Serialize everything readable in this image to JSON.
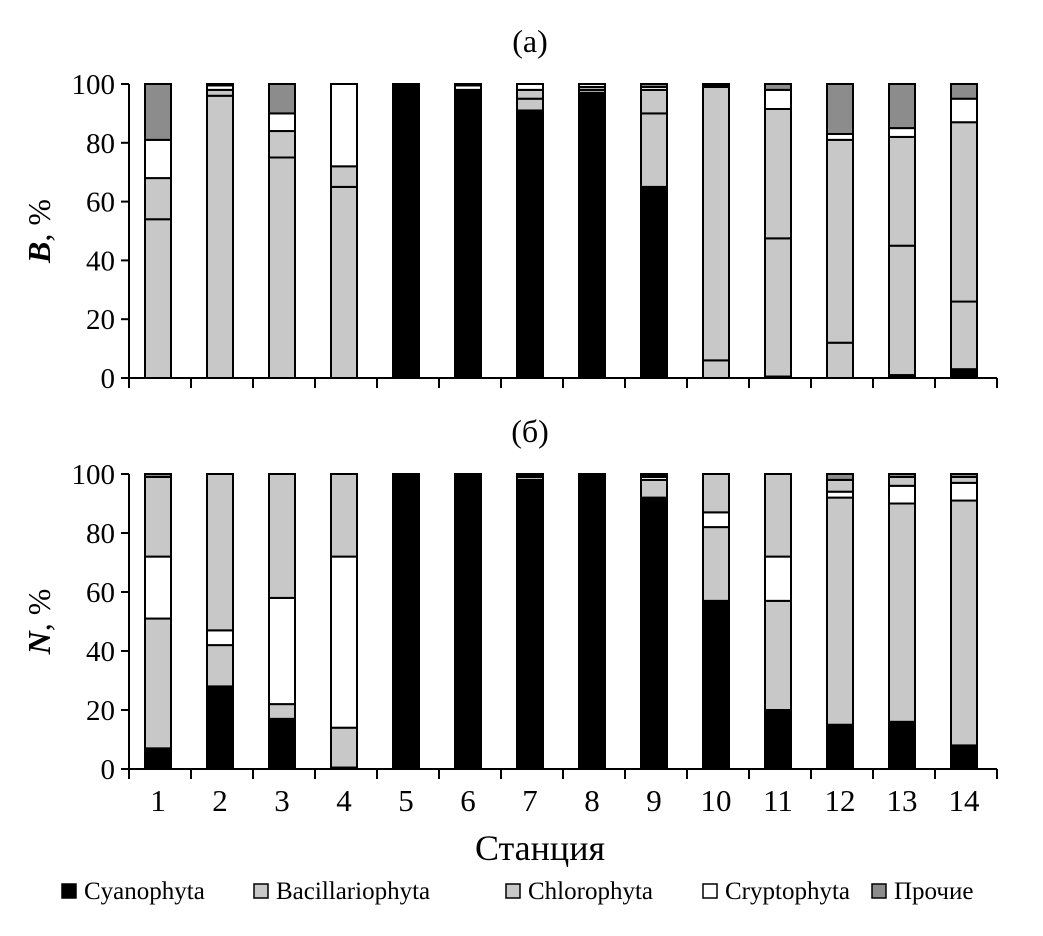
{
  "chart_data": [
    {
      "type": "bar",
      "stacked": true,
      "title": "(а)",
      "ylabel_var": "B",
      "ylabel_unit": ", %",
      "ylim": [
        0,
        100
      ],
      "yticks": [
        "0",
        "20",
        "40",
        "60",
        "80",
        "100"
      ],
      "categories": [
        "1",
        "2",
        "3",
        "4",
        "5",
        "6",
        "7",
        "8",
        "9",
        "10",
        "11",
        "12",
        "13",
        "14"
      ],
      "stack_order": [
        "Cyanophyta",
        "Bacillariophyta",
        "Chlorophyta",
        "Cryptophyta",
        "Прочие"
      ],
      "series": [
        {
          "name": "Cyanophyta",
          "values": [
            0,
            0,
            0,
            0,
            99,
            98,
            91,
            97,
            65,
            0,
            0.5,
            0,
            1,
            3
          ]
        },
        {
          "name": "Bacillariophyta",
          "values": [
            54,
            96,
            75,
            65,
            0,
            0,
            4,
            1,
            25,
            6,
            47,
            12,
            44,
            23
          ]
        },
        {
          "name": "Chlorophyta",
          "values": [
            14,
            2,
            9,
            7,
            0.5,
            0,
            3,
            1,
            8,
            93,
            44,
            69,
            37,
            61
          ]
        },
        {
          "name": "Cryptophyta",
          "values": [
            13,
            1.5,
            6,
            28,
            0.5,
            1.5,
            2,
            1,
            1,
            0.5,
            6.5,
            2,
            3,
            8
          ]
        },
        {
          "name": "Прочие",
          "values": [
            19,
            0.5,
            10,
            0,
            0,
            0.5,
            0,
            0,
            1,
            0.5,
            2,
            17,
            15,
            5
          ]
        }
      ]
    },
    {
      "type": "bar",
      "stacked": true,
      "title": "(б)",
      "ylabel_var": "N",
      "ylabel_unit": ", %",
      "ylim": [
        0,
        100
      ],
      "yticks": [
        "0",
        "20",
        "40",
        "60",
        "80",
        "100"
      ],
      "categories": [
        "1",
        "2",
        "3",
        "4",
        "5",
        "6",
        "7",
        "8",
        "9",
        "10",
        "11",
        "12",
        "13",
        "14"
      ],
      "xlabel": "Станция",
      "stack_order": [
        "Cyanophyta",
        "Bacillariophyta",
        "Cryptophyta",
        "Chlorophyta",
        "Прочие"
      ],
      "series": [
        {
          "name": "Cyanophyta",
          "values": [
            7,
            28,
            17,
            0.5,
            100,
            100,
            98,
            100,
            92,
            57,
            20,
            15,
            16,
            8
          ]
        },
        {
          "name": "Bacillariophyta",
          "values": [
            44,
            14,
            5,
            13.5,
            0,
            0,
            1,
            0,
            6,
            25,
            37,
            77,
            74,
            83
          ]
        },
        {
          "name": "Chlorophyta",
          "values": [
            27,
            53,
            42,
            28,
            0,
            0,
            0.5,
            0,
            0.5,
            13,
            28,
            4,
            3,
            2
          ]
        },
        {
          "name": "Cryptophyta",
          "values": [
            21,
            5,
            36,
            58,
            0,
            0,
            0.5,
            0,
            1,
            5,
            15,
            2,
            6,
            6
          ]
        },
        {
          "name": "Прочие",
          "values": [
            1,
            0,
            0,
            0,
            0,
            0,
            0,
            0,
            0.5,
            0,
            0,
            2,
            1,
            1
          ]
        }
      ]
    }
  ],
  "legend": [
    {
      "name": "Cyanophyta",
      "color": "#000000"
    },
    {
      "name": "Bacillariophyta",
      "color": "#c8c8c8"
    },
    {
      "name": "Chlorophyta",
      "color": "#c8c8c8"
    },
    {
      "name": "Cryptophyta",
      "color": "#ffffff"
    },
    {
      "name": "Прочие",
      "color": "#8c8c8c"
    }
  ]
}
